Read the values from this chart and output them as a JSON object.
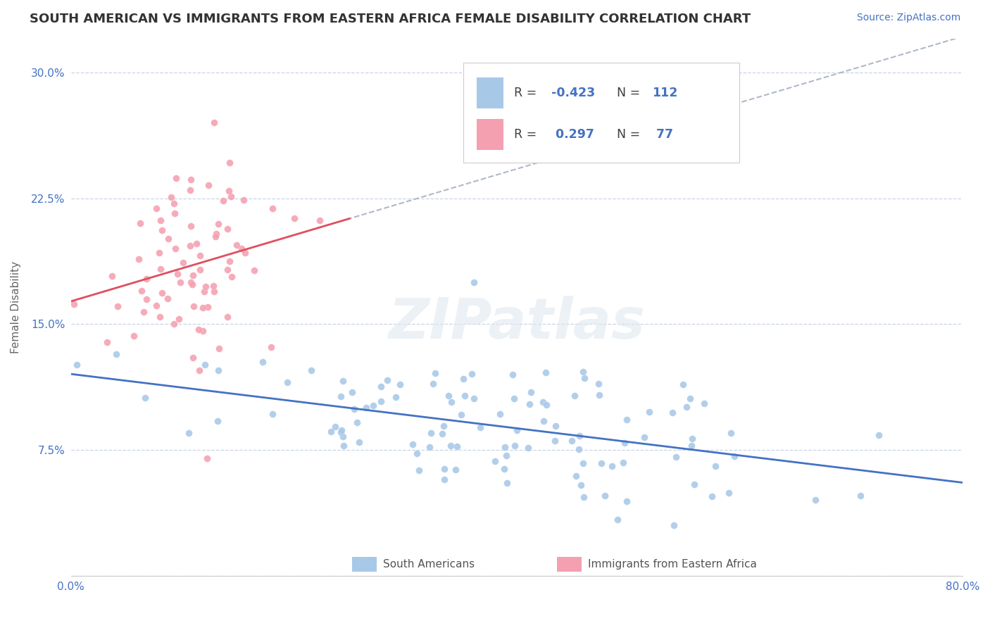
{
  "title": "SOUTH AMERICAN VS IMMIGRANTS FROM EASTERN AFRICA FEMALE DISABILITY CORRELATION CHART",
  "source_text": "Source: ZipAtlas.com",
  "ylabel": "Female Disability",
  "xlim": [
    0.0,
    0.8
  ],
  "ylim": [
    0.0,
    0.32
  ],
  "yticks": [
    0.0,
    0.075,
    0.15,
    0.225,
    0.3
  ],
  "ytick_labels": [
    "",
    "7.5%",
    "15.0%",
    "22.5%",
    "30.0%"
  ],
  "xtick_labels": [
    "0.0%",
    "80.0%"
  ],
  "r1": -0.423,
  "n1": 112,
  "r2": 0.297,
  "n2": 77,
  "color_blue": "#a8c8e8",
  "color_pink": "#f4a0b0",
  "line_blue": "#4472c4",
  "line_pink": "#e05060",
  "line_grey": "#b0b8c8",
  "grid_color": "#c8d4e8",
  "background_color": "#ffffff",
  "watermark": "ZIPatlas",
  "text_blue": "#4472c4",
  "text_dark": "#404040",
  "source_color": "#4472c4"
}
